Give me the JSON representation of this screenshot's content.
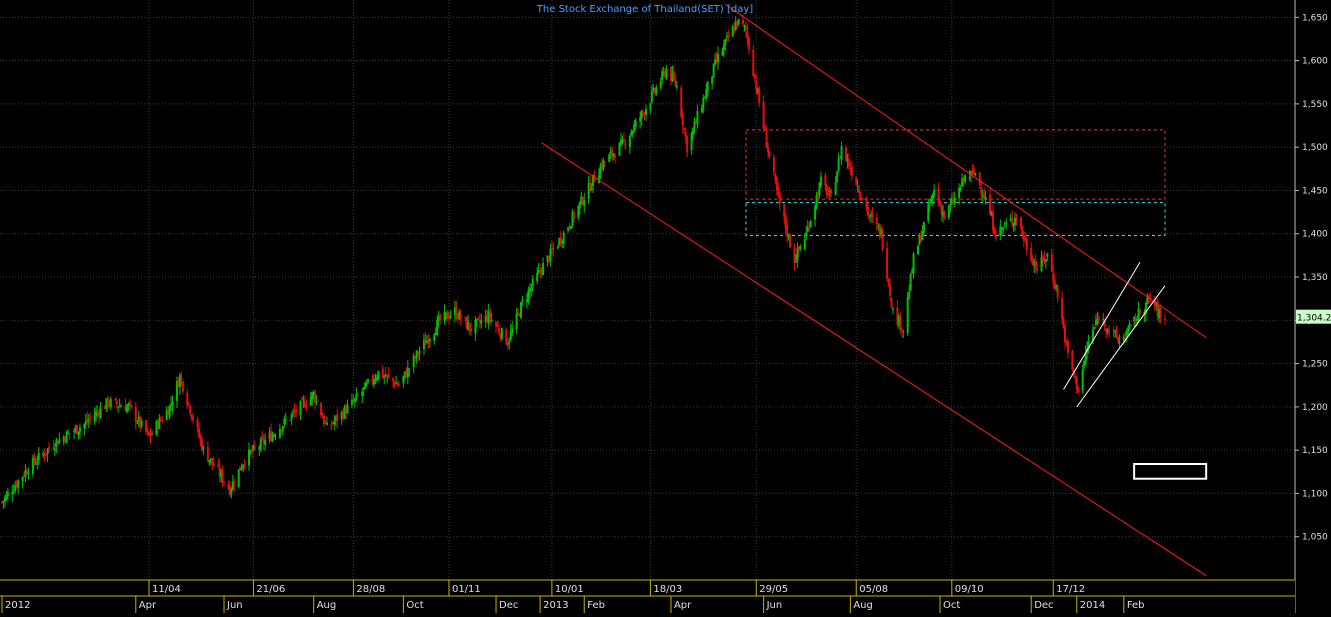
{
  "chart_data": {
    "type": "candlestick",
    "title": "The Stock Exchange of Thailand(SET) [day]",
    "colors": {
      "background": "#000000",
      "grid": "#3a3a3a",
      "up": "#00c000",
      "down": "#e01010",
      "channel": "#ff1a1a",
      "inner_channel": "#ffffff",
      "box_red": "#ff3030",
      "box_cyan": "#40e0e0",
      "title": "#4aa0ff",
      "axis_text": "#e0e0e0",
      "axis_line": "#c8b400",
      "last_price_bg": "#c8ffc8"
    },
    "y_axis": {
      "min": 1000,
      "max": 1670,
      "ticks": [
        1050,
        1100,
        1150,
        1200,
        1250,
        1300,
        1350,
        1400,
        1450,
        1500,
        1550,
        1600,
        1650
      ],
      "tick_labels": [
        "1,050",
        "1,100",
        "1,150",
        "1,200",
        "1,250",
        "1,300",
        "1,350",
        "1,400",
        "1,450",
        "1,500",
        "1,550",
        "1,600",
        "1,650"
      ],
      "last_price_label": "1,304.2",
      "last_price": 1304.2
    },
    "x_axis": {
      "start": "2012-01-02",
      "end": "2014-03-03",
      "upper_labels": [
        {
          "date": "2012-04-11",
          "label": "11/04"
        },
        {
          "date": "2012-06-21",
          "label": "21/06"
        },
        {
          "date": "2012-08-28",
          "label": "28/08"
        },
        {
          "date": "2012-11-01",
          "label": "01/11"
        },
        {
          "date": "2013-01-10",
          "label": "10/01"
        },
        {
          "date": "2013-03-18",
          "label": "18/03"
        },
        {
          "date": "2013-05-29",
          "label": "29/05"
        },
        {
          "date": "2013-08-05",
          "label": "05/08"
        },
        {
          "date": "2013-10-09",
          "label": "09/10"
        },
        {
          "date": "2013-12-17",
          "label": "17/12"
        }
      ],
      "lower_labels": [
        {
          "date": "2012-01-02",
          "label": "2012"
        },
        {
          "date": "2012-04-02",
          "label": "Apr"
        },
        {
          "date": "2012-06-01",
          "label": "Jun"
        },
        {
          "date": "2012-08-01",
          "label": "Aug"
        },
        {
          "date": "2012-10-01",
          "label": "Oct"
        },
        {
          "date": "2012-12-03",
          "label": "Dec"
        },
        {
          "date": "2013-01-02",
          "label": "2013"
        },
        {
          "date": "2013-02-01",
          "label": "Feb"
        },
        {
          "date": "2013-04-01",
          "label": "Apr"
        },
        {
          "date": "2013-06-03",
          "label": "Jun"
        },
        {
          "date": "2013-08-01",
          "label": "Aug"
        },
        {
          "date": "2013-10-01",
          "label": "Oct"
        },
        {
          "date": "2013-12-02",
          "label": "Dec"
        },
        {
          "date": "2014-01-02",
          "label": "2014"
        },
        {
          "date": "2014-02-03",
          "label": "Feb"
        }
      ]
    },
    "series": [
      {
        "kind": "close_path",
        "points": [
          [
            "2012-01-02",
            1090
          ],
          [
            "2012-01-20",
            1130
          ],
          [
            "2012-02-08",
            1160
          ],
          [
            "2012-02-27",
            1180
          ],
          [
            "2012-03-14",
            1205
          ],
          [
            "2012-03-28",
            1200
          ],
          [
            "2012-04-11",
            1165
          ],
          [
            "2012-04-25",
            1200
          ],
          [
            "2012-05-02",
            1235
          ],
          [
            "2012-05-18",
            1150
          ],
          [
            "2012-05-30",
            1120
          ],
          [
            "2012-06-05",
            1105
          ],
          [
            "2012-06-15",
            1140
          ],
          [
            "2012-07-05",
            1170
          ],
          [
            "2012-07-20",
            1195
          ],
          [
            "2012-08-01",
            1215
          ],
          [
            "2012-08-10",
            1175
          ],
          [
            "2012-08-28",
            1205
          ],
          [
            "2012-09-14",
            1240
          ],
          [
            "2012-09-28",
            1225
          ],
          [
            "2012-10-12",
            1265
          ],
          [
            "2012-10-26",
            1300
          ],
          [
            "2012-11-05",
            1310
          ],
          [
            "2012-11-16",
            1290
          ],
          [
            "2012-11-28",
            1305
          ],
          [
            "2012-12-11",
            1275
          ],
          [
            "2012-12-21",
            1320
          ],
          [
            "2013-01-03",
            1360
          ],
          [
            "2013-01-18",
            1400
          ],
          [
            "2013-01-31",
            1440
          ],
          [
            "2013-02-13",
            1480
          ],
          [
            "2013-02-28",
            1505
          ],
          [
            "2013-03-13",
            1540
          ],
          [
            "2013-03-29",
            1590
          ],
          [
            "2013-04-05",
            1570
          ],
          [
            "2013-04-12",
            1500
          ],
          [
            "2013-04-22",
            1550
          ],
          [
            "2013-05-02",
            1600
          ],
          [
            "2013-05-16",
            1645
          ],
          [
            "2013-05-22",
            1635
          ],
          [
            "2013-05-29",
            1570
          ],
          [
            "2013-06-05",
            1505
          ],
          [
            "2013-06-13",
            1440
          ],
          [
            "2013-06-24",
            1370
          ],
          [
            "2013-07-02",
            1400
          ],
          [
            "2013-07-12",
            1460
          ],
          [
            "2013-07-19",
            1440
          ],
          [
            "2013-07-26",
            1500
          ],
          [
            "2013-08-05",
            1460
          ],
          [
            "2013-08-14",
            1420
          ],
          [
            "2013-08-22",
            1400
          ],
          [
            "2013-08-30",
            1310
          ],
          [
            "2013-09-06",
            1290
          ],
          [
            "2013-09-13",
            1370
          ],
          [
            "2013-09-20",
            1410
          ],
          [
            "2013-09-27",
            1450
          ],
          [
            "2013-10-04",
            1420
          ],
          [
            "2013-10-11",
            1440
          ],
          [
            "2013-10-18",
            1465
          ],
          [
            "2013-10-25",
            1470
          ],
          [
            "2013-11-01",
            1440
          ],
          [
            "2013-11-08",
            1400
          ],
          [
            "2013-11-15",
            1410
          ],
          [
            "2013-11-22",
            1420
          ],
          [
            "2013-11-29",
            1385
          ],
          [
            "2013-12-06",
            1360
          ],
          [
            "2013-12-13",
            1375
          ],
          [
            "2013-12-20",
            1330
          ],
          [
            "2013-12-27",
            1260
          ],
          [
            "2014-01-03",
            1220
          ],
          [
            "2014-01-10",
            1275
          ],
          [
            "2014-01-17",
            1305
          ],
          [
            "2014-01-24",
            1290
          ],
          [
            "2014-01-31",
            1275
          ],
          [
            "2014-02-07",
            1290
          ],
          [
            "2014-02-14",
            1310
          ],
          [
            "2014-02-21",
            1325
          ],
          [
            "2014-02-28",
            1304
          ]
        ]
      }
    ],
    "channel_upper": {
      "start": [
        "2013-05-08",
        1665
      ],
      "end": [
        "2014-03-31",
        1280
      ]
    },
    "channel_lower": {
      "start": [
        "2013-01-03",
        1505
      ],
      "end": [
        "2014-03-31",
        1005
      ]
    },
    "inner_channel_upper": {
      "start": [
        "2013-12-24",
        1220
      ],
      "end": [
        "2014-02-14",
        1367
      ]
    },
    "inner_channel_lower": {
      "start": [
        "2014-01-02",
        1200
      ],
      "end": [
        "2014-03-03",
        1340
      ]
    },
    "resistance_box": {
      "from": "2013-05-22",
      "to": "2014-03-03",
      "top": 1520,
      "bottom": 1440
    },
    "support_box": {
      "from": "2013-05-22",
      "to": "2014-03-03",
      "top": 1436,
      "bottom": 1398
    },
    "white_box": {
      "from": "2014-02-10",
      "to": "2014-03-31",
      "top": 1134,
      "bottom": 1117
    }
  }
}
